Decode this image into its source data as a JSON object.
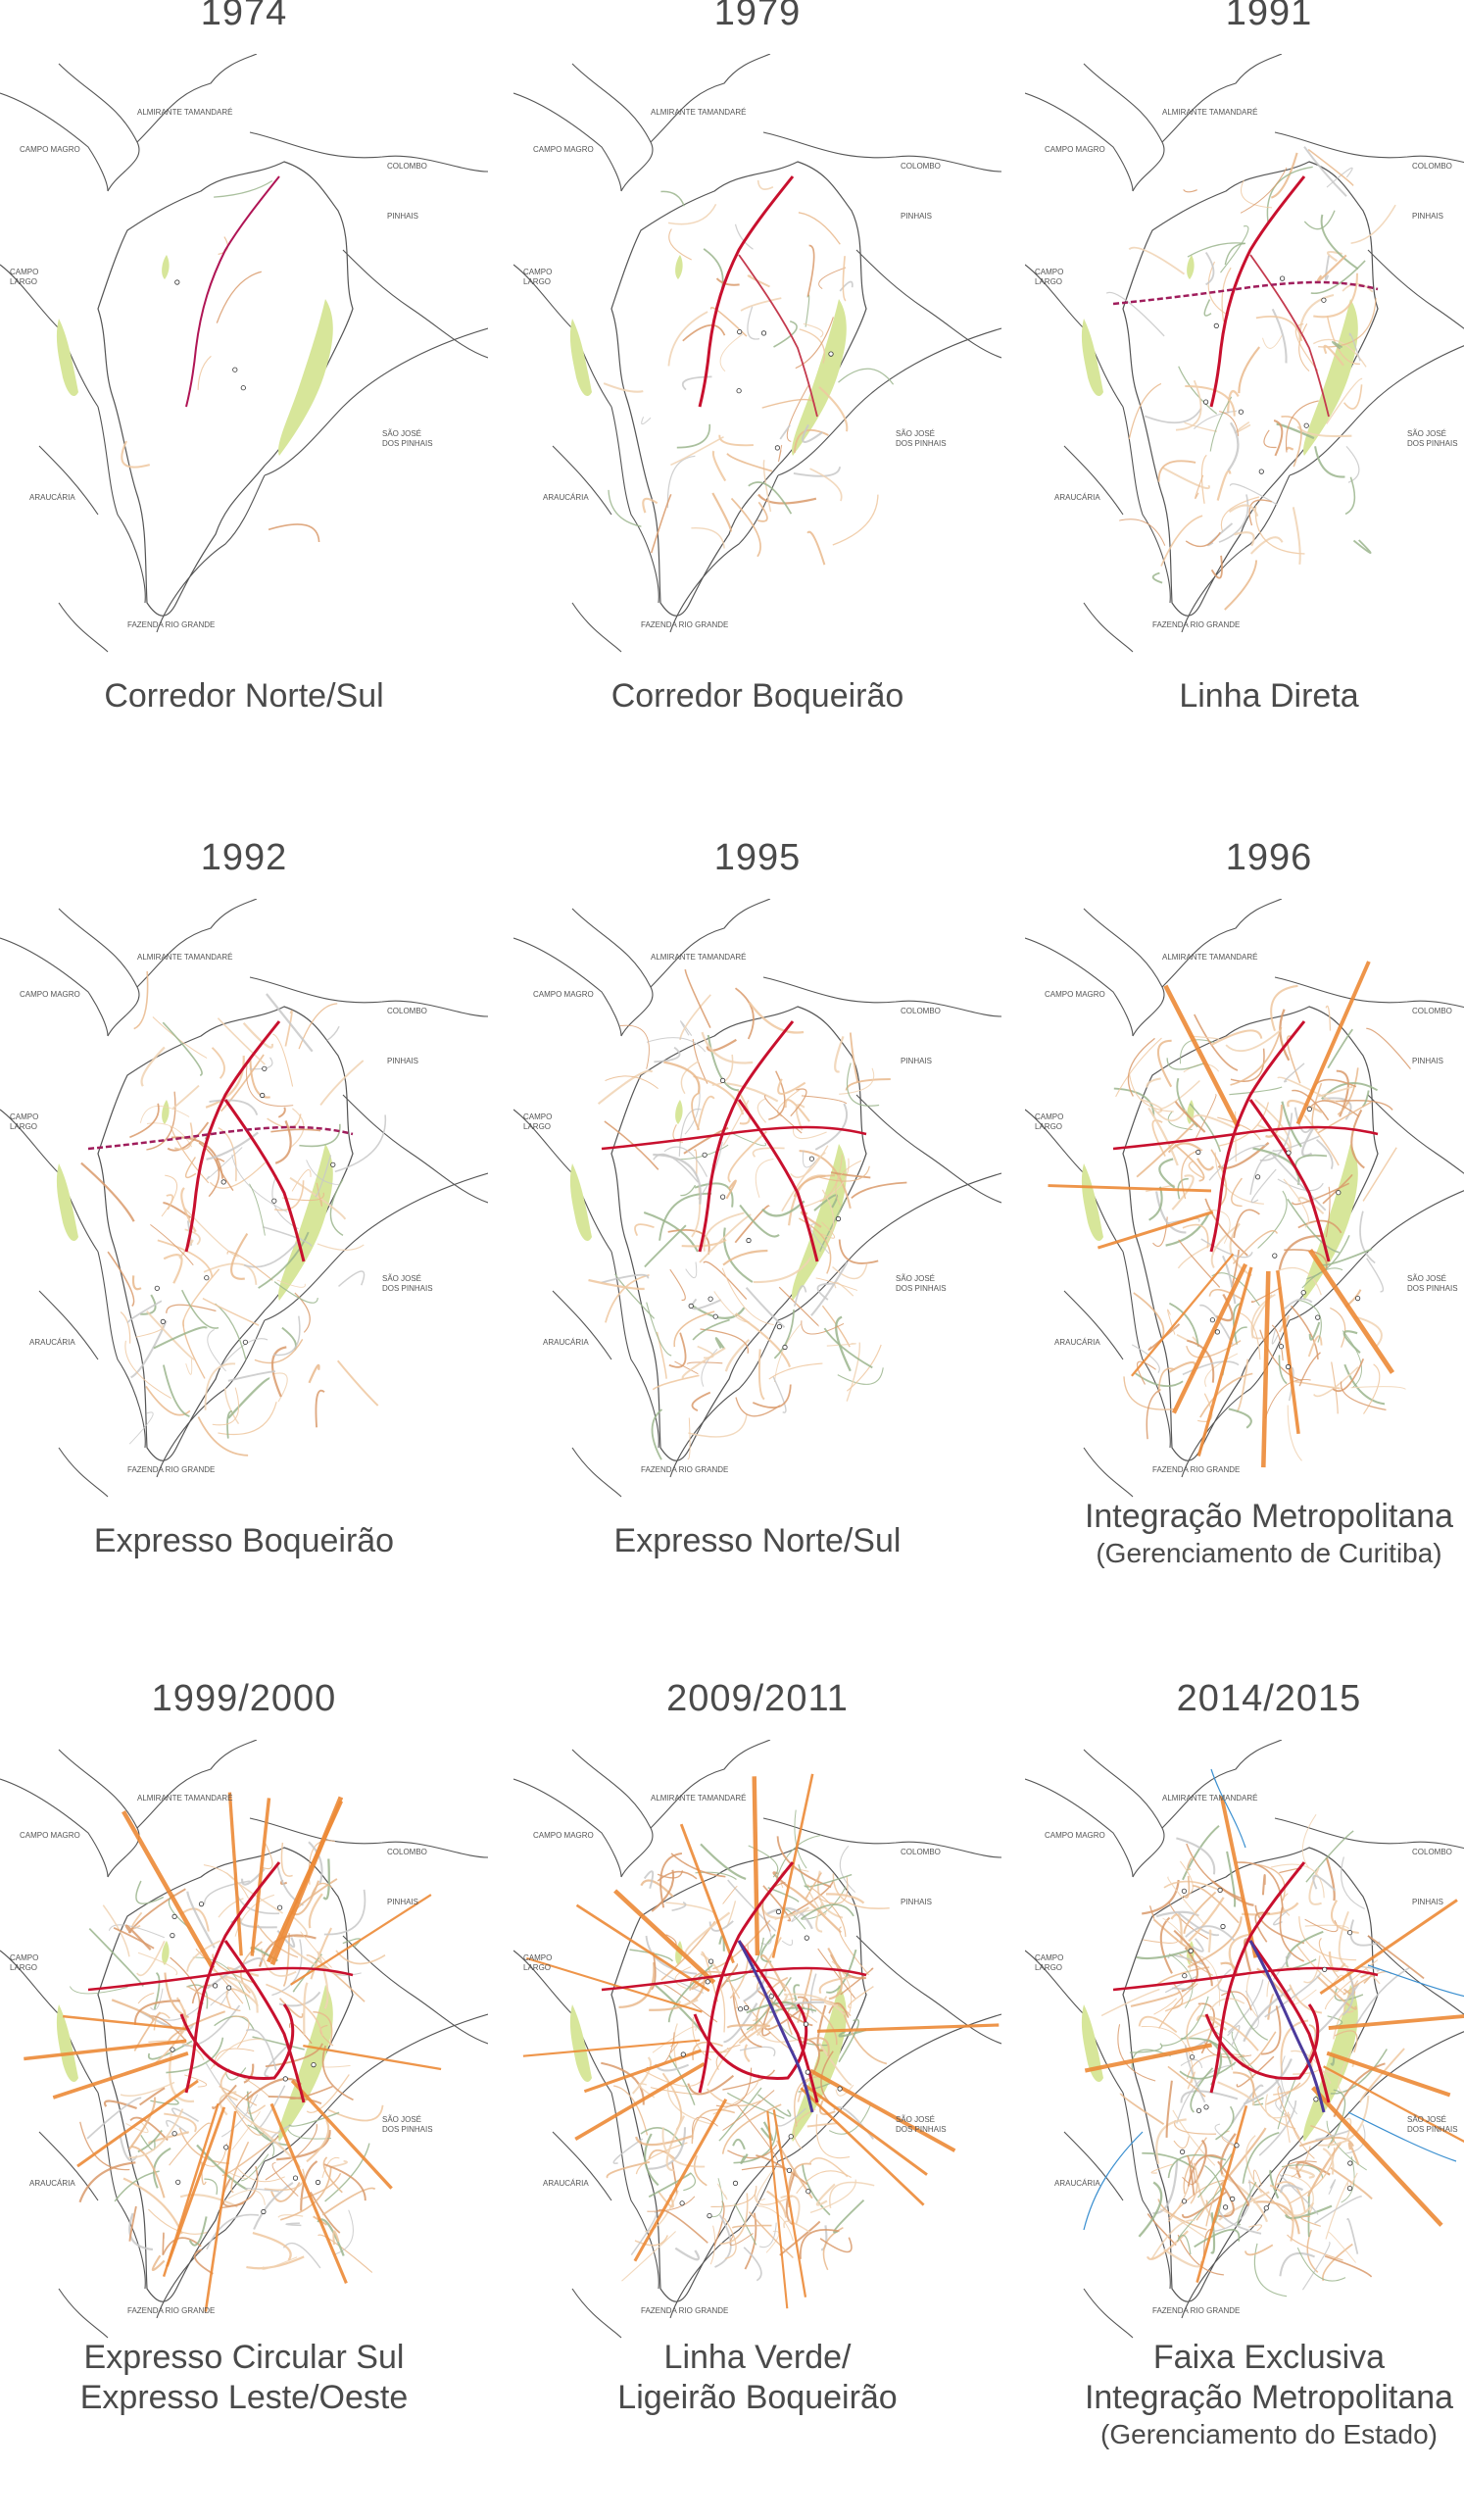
{
  "map_labels": {
    "almirante": "ALMIRANTE TAMANDARÉ",
    "campo_magro": "CAMPO MAGRO",
    "colombo": "COLOMBO",
    "pinhais": "PINHAIS",
    "campo_largo_1": "CAMPO",
    "campo_largo_2": "LARGO",
    "sao_jose_1": "SÃO JOSÉ",
    "sao_jose_2": "DOS PINHAIS",
    "araucaria": "ARAUCÁRIA",
    "fazenda": "FAZENDA RIO GRANDE"
  },
  "panels": [
    {
      "year": "1974",
      "caption": [
        "Corredor Norte/Sul"
      ],
      "sub": "",
      "level": 0
    },
    {
      "year": "1979",
      "caption": [
        "Corredor Boqueirão"
      ],
      "sub": "",
      "level": 1
    },
    {
      "year": "1991",
      "caption": [
        "Linha Direta"
      ],
      "sub": "",
      "level": 2
    },
    {
      "year": "1992",
      "caption": [
        "Expresso Boqueirão"
      ],
      "sub": "",
      "level": 3
    },
    {
      "year": "1995",
      "caption": [
        "Expresso Norte/Sul"
      ],
      "sub": "",
      "level": 4
    },
    {
      "year": "1996",
      "caption": [
        "Integração Metropolitana"
      ],
      "sub": "(Gerenciamento de Curitiba)",
      "level": 5
    },
    {
      "year": "1999/2000",
      "caption": [
        "Expresso Circular Sul",
        "Expresso Leste/Oeste"
      ],
      "sub": "",
      "level": 6
    },
    {
      "year": "2009/2011",
      "caption": [
        "Linha Verde/",
        "Ligeirão Boqueirão"
      ],
      "sub": "",
      "level": 7
    },
    {
      "year": "2014/2015",
      "caption": [
        "Faixa Exclusiva",
        "Integração Metropolitana"
      ],
      "sub": "(Gerenciamento do Estado)",
      "level": 8
    }
  ]
}
